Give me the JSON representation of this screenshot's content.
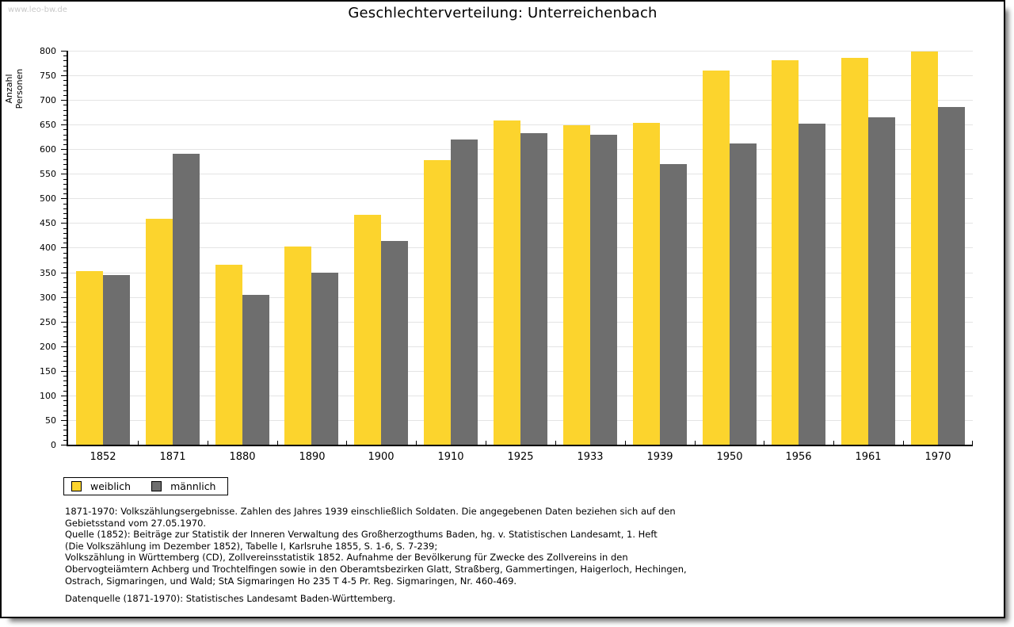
{
  "page": {
    "watermark": "www.leo-bw.de"
  },
  "chart_data": {
    "type": "bar",
    "title": "Geschlechterverteilung: Unterreichenbach",
    "xlabel": "",
    "ylabel": "Anzahl Personen",
    "ylim": [
      0,
      800
    ],
    "ytick_step": 50,
    "yminor_step": 10,
    "grid": true,
    "legend_position": "bottom-left",
    "categories": [
      "1852",
      "1871",
      "1880",
      "1890",
      "1900",
      "1910",
      "1925",
      "1933",
      "1939",
      "1950",
      "1956",
      "1961",
      "1970"
    ],
    "series": [
      {
        "name": "weiblich",
        "color": "#FCD42D",
        "values": [
          352,
          458,
          365,
          402,
          466,
          578,
          658,
          648,
          654,
          760,
          780,
          785,
          798
        ]
      },
      {
        "name": "männlich",
        "color": "#6E6E6E",
        "values": [
          344,
          590,
          305,
          350,
          414,
          620,
          633,
          630,
          570,
          612,
          652,
          665,
          685
        ]
      }
    ]
  },
  "footnotes": {
    "lines": [
      "1871-1970: Volkszählungsergebnisse. Zahlen des Jahres 1939 einschließlich Soldaten. Die angegebenen Daten beziehen sich auf den",
      "Gebietsstand vom 27.05.1970.",
      "Quelle (1852): Beiträge zur Statistik der Inneren Verwaltung des Großherzogthums Baden, hg. v. Statistischen Landesamt, 1. Heft",
      "(Die Volkszählung im Dezember 1852), Tabelle I, Karlsruhe 1855, S. 1-6, S. 7-239;",
      "Volkszählung in Württemberg (CD), Zollvereinsstatistik 1852. Aufnahme der Bevölkerung für Zwecke des Zollvereins in den",
      "Obervogteiämtern Achberg und Trochtelfingen sowie in den Oberamtsbezirken Glatt, Straßberg, Gammertingen, Haigerloch, Hechingen,",
      "Ostrach, Sigmaringen, und Wald; StA Sigmaringen Ho 235 T 4-5 Pr. Reg. Sigmaringen, Nr. 460-469."
    ],
    "datasource": "Datenquelle (1871-1970): Statistisches Landesamt Baden-Württemberg."
  },
  "colors": {
    "bar_female": "#FCD42D",
    "bar_male": "#6E6E6E",
    "gridline": "#e4e4e4",
    "axis": "#000000",
    "watermark": "#c9c9c9"
  }
}
